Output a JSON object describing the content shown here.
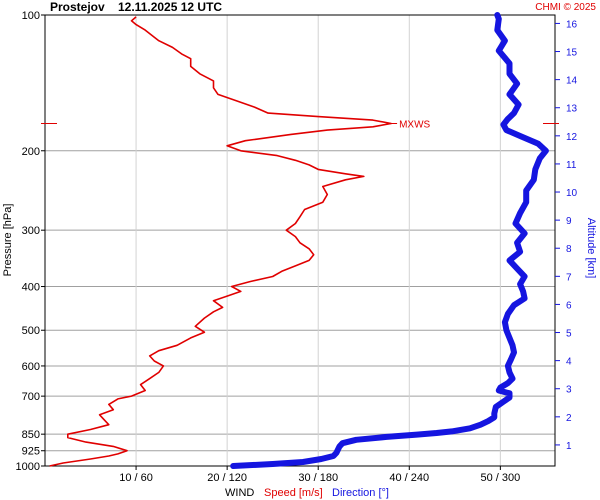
{
  "header": {
    "station": "Prostejov",
    "datetime": "12.11.2025 12 UTC",
    "copyright": "CHMI © 2025"
  },
  "colors": {
    "speed": "#e00000",
    "direction": "#1515e0",
    "grid": "#a0a0a0"
  },
  "chart_data": {
    "type": "line",
    "title": "Prostejov    12.11.2025 12 UTC",
    "ylabel": "Pressure [hPa]",
    "y2label": "Altitude [km]",
    "xlabel_parts": [
      "WIND",
      "Speed [m/s]",
      "Direction [°]"
    ],
    "y_scale": "log",
    "ylim_hpa": [
      1000,
      100
    ],
    "pressure_ticks": [
      "100",
      "200",
      "300",
      "400",
      "500",
      "600",
      "700",
      "850",
      "925",
      "1000"
    ],
    "altitude_ticks": [
      "1",
      "2",
      "3",
      "4",
      "5",
      "6",
      "7",
      "8",
      "9",
      "10",
      "11",
      "12",
      "13",
      "14",
      "15",
      "16"
    ],
    "x_ticks": [
      "10 / 60",
      "20 / 120",
      "30 / 180",
      "40 / 240",
      "50 / 300"
    ],
    "speed_axis": {
      "min": 0,
      "max": 56,
      "unit": "m/s"
    },
    "direction_axis": {
      "min": 0,
      "max": 336,
      "unit": "deg"
    },
    "annotation": {
      "label": "MXWS",
      "pressure": 174,
      "speed": 38
    },
    "series": [
      {
        "name": "Speed [m/s]",
        "points": [
          [
            1000,
            0.5
          ],
          [
            985,
            2
          ],
          [
            965,
            5
          ],
          [
            950,
            7
          ],
          [
            940,
            8
          ],
          [
            925,
            9
          ],
          [
            905,
            7.5
          ],
          [
            885,
            4.5
          ],
          [
            865,
            2.5
          ],
          [
            850,
            2.5
          ],
          [
            830,
            5
          ],
          [
            810,
            7
          ],
          [
            790,
            6.5
          ],
          [
            770,
            6
          ],
          [
            750,
            7.5
          ],
          [
            730,
            7
          ],
          [
            710,
            8
          ],
          [
            700,
            9.5
          ],
          [
            680,
            11
          ],
          [
            660,
            10.5
          ],
          [
            640,
            11.5
          ],
          [
            620,
            12.5
          ],
          [
            600,
            13
          ],
          [
            585,
            12
          ],
          [
            570,
            11.5
          ],
          [
            555,
            12.5
          ],
          [
            540,
            14.5
          ],
          [
            520,
            16
          ],
          [
            505,
            17.5
          ],
          [
            490,
            16.5
          ],
          [
            470,
            17.5
          ],
          [
            455,
            18.5
          ],
          [
            445,
            19.5
          ],
          [
            430,
            18.5
          ],
          [
            420,
            20
          ],
          [
            410,
            21.5
          ],
          [
            400,
            20.5
          ],
          [
            390,
            22.5
          ],
          [
            380,
            25
          ],
          [
            370,
            26
          ],
          [
            360,
            27.5
          ],
          [
            350,
            29
          ],
          [
            340,
            29.5
          ],
          [
            330,
            29
          ],
          [
            320,
            28
          ],
          [
            310,
            27.5
          ],
          [
            300,
            26.5
          ],
          [
            290,
            27.5
          ],
          [
            280,
            28
          ],
          [
            270,
            28.5
          ],
          [
            260,
            30.5
          ],
          [
            250,
            31
          ],
          [
            240,
            30.5
          ],
          [
            232,
            33
          ],
          [
            228,
            35
          ],
          [
            225,
            33
          ],
          [
            220,
            30
          ],
          [
            215,
            29
          ],
          [
            210,
            27.5
          ],
          [
            205,
            25.5
          ],
          [
            200,
            21.5
          ],
          [
            195,
            20
          ],
          [
            190,
            22
          ],
          [
            184,
            27
          ],
          [
            180,
            31
          ],
          [
            177,
            36
          ],
          [
            174,
            38
          ],
          [
            171,
            36
          ],
          [
            168,
            30
          ],
          [
            165,
            24.5
          ],
          [
            160,
            23
          ],
          [
            155,
            21
          ],
          [
            150,
            19
          ],
          [
            145,
            18.5
          ],
          [
            140,
            18.5
          ],
          [
            135,
            17
          ],
          [
            130,
            16
          ],
          [
            125,
            16
          ],
          [
            122,
            15
          ],
          [
            118,
            14
          ],
          [
            114,
            12.5
          ],
          [
            112,
            12
          ],
          [
            108,
            11
          ],
          [
            105,
            10
          ],
          [
            103,
            9.5
          ],
          [
            101,
            10
          ]
        ]
      },
      {
        "name": "Direction [°]",
        "points": [
          [
            1000,
            124
          ],
          [
            990,
            150
          ],
          [
            980,
            170
          ],
          [
            965,
            182
          ],
          [
            950,
            190
          ],
          [
            935,
            192
          ],
          [
            920,
            193
          ],
          [
            905,
            194
          ],
          [
            890,
            196
          ],
          [
            875,
            205
          ],
          [
            862,
            225
          ],
          [
            852,
            245
          ],
          [
            845,
            258
          ],
          [
            838,
            268
          ],
          [
            825,
            280
          ],
          [
            810,
            287
          ],
          [
            795,
            292
          ],
          [
            780,
            296
          ],
          [
            765,
            296
          ],
          [
            740,
            297
          ],
          [
            720,
            302
          ],
          [
            705,
            306
          ],
          [
            690,
            306
          ],
          [
            680,
            299
          ],
          [
            670,
            300
          ],
          [
            655,
            305
          ],
          [
            640,
            308
          ],
          [
            620,
            306
          ],
          [
            600,
            305
          ],
          [
            580,
            307
          ],
          [
            560,
            309
          ],
          [
            540,
            308
          ],
          [
            520,
            306
          ],
          [
            500,
            304
          ],
          [
            480,
            303
          ],
          [
            460,
            305
          ],
          [
            440,
            309
          ],
          [
            425,
            316
          ],
          [
            410,
            315
          ],
          [
            395,
            313
          ],
          [
            380,
            316
          ],
          [
            365,
            311
          ],
          [
            350,
            306
          ],
          [
            335,
            313
          ],
          [
            320,
            311
          ],
          [
            305,
            316
          ],
          [
            290,
            310
          ],
          [
            275,
            313
          ],
          [
            260,
            317
          ],
          [
            245,
            317
          ],
          [
            232,
            322
          ],
          [
            220,
            323
          ],
          [
            208,
            326
          ],
          [
            200,
            330
          ],
          [
            193,
            325
          ],
          [
            186,
            314
          ],
          [
            180,
            304
          ],
          [
            175,
            302
          ],
          [
            170,
            305
          ],
          [
            165,
            309
          ],
          [
            158,
            312
          ],
          [
            150,
            306
          ],
          [
            142,
            311
          ],
          [
            135,
            306
          ],
          [
            128,
            306
          ],
          [
            120,
            299
          ],
          [
            114,
            303
          ],
          [
            108,
            298
          ],
          [
            102,
            299
          ],
          [
            100,
            298
          ]
        ]
      }
    ]
  }
}
